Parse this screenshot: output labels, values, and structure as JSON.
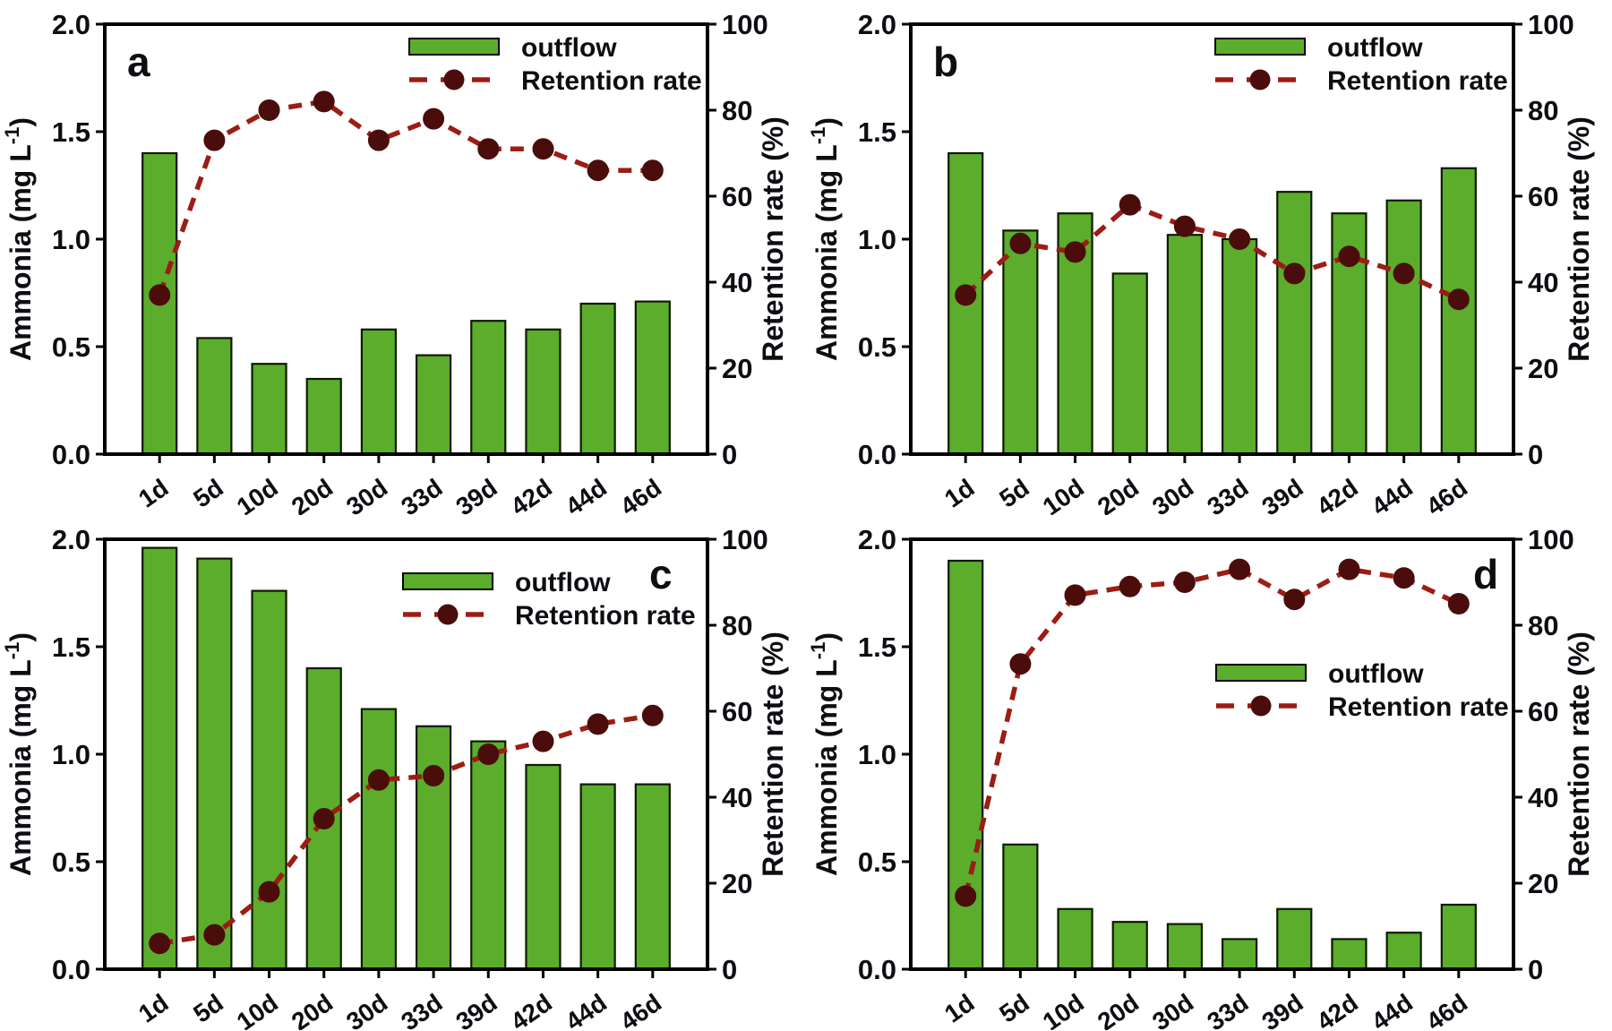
{
  "figure": {
    "background": "#ffffff",
    "panel_letters": [
      "a",
      "b",
      "c",
      "d"
    ],
    "legend": {
      "outflow_label": "outflow",
      "retention_label": "Retention rate"
    },
    "axes": {
      "left_label": "Ammonia (mg L⁻¹)",
      "left_label_main": "Ammonia (mg L",
      "left_label_sup": "-1",
      "left_label_close": ")",
      "left_ticks": [
        "0.0",
        "0.5",
        "1.0",
        "1.5",
        "2.0"
      ],
      "left_tick_values": [
        0,
        0.5,
        1.0,
        1.5,
        2.0
      ],
      "left_range": [
        0,
        2
      ],
      "right_label": "Retention rate (%)",
      "right_ticks": [
        "0",
        "20",
        "40",
        "60",
        "80",
        "100"
      ],
      "right_tick_values": [
        0,
        20,
        40,
        60,
        80,
        100
      ],
      "right_range": [
        0,
        100
      ],
      "x_tick_labels": [
        "1d",
        "5d",
        "10d",
        "20d",
        "30d",
        "33d",
        "39d",
        "42d",
        "44d",
        "46d"
      ]
    },
    "colors": {
      "bar_fill": "#5BAD2B",
      "bar_stroke": "#0d1a02",
      "line": "#9B1D14",
      "marker": "#4A0D0B",
      "text": "#0d0d12",
      "frame": "#000000"
    }
  },
  "chart_data": [
    {
      "panel": "a",
      "type": "bar",
      "categories": [
        "1d",
        "5d",
        "10d",
        "20d",
        "30d",
        "33d",
        "39d",
        "42d",
        "44d",
        "46d"
      ],
      "series": [
        {
          "name": "outflow",
          "type": "bar",
          "yaxis": "left",
          "unit": "mg L-1",
          "values": [
            1.4,
            0.54,
            0.42,
            0.35,
            0.58,
            0.46,
            0.62,
            0.58,
            0.7,
            0.71
          ]
        },
        {
          "name": "Retention rate",
          "type": "line",
          "yaxis": "right",
          "unit": "%",
          "values": [
            37,
            73,
            80,
            82,
            73,
            78,
            71,
            71,
            66,
            66
          ]
        }
      ],
      "ylabel_left": "Ammonia (mg L⁻¹)",
      "ylabel_right": "Retention rate (%)",
      "ylim_left": [
        0,
        2
      ],
      "ylim_right": [
        0,
        100
      ],
      "legend_position": "upper-right",
      "letter_position": "upper-left",
      "grid": false
    },
    {
      "panel": "b",
      "type": "bar",
      "categories": [
        "1d",
        "5d",
        "10d",
        "20d",
        "30d",
        "33d",
        "39d",
        "42d",
        "44d",
        "46d"
      ],
      "series": [
        {
          "name": "outflow",
          "type": "bar",
          "yaxis": "left",
          "unit": "mg L-1",
          "values": [
            1.4,
            1.04,
            1.12,
            0.84,
            1.02,
            1.0,
            1.22,
            1.12,
            1.18,
            1.33
          ]
        },
        {
          "name": "Retention rate",
          "type": "line",
          "yaxis": "right",
          "unit": "%",
          "values": [
            37,
            49,
            47,
            58,
            53,
            50,
            42,
            46,
            42,
            36
          ]
        }
      ],
      "ylabel_left": "Ammonia (mg L⁻¹)",
      "ylabel_right": "Retention rate (%)",
      "ylim_left": [
        0,
        2
      ],
      "ylim_right": [
        0,
        100
      ],
      "legend_position": "upper-right",
      "letter_position": "upper-left",
      "grid": false
    },
    {
      "panel": "c",
      "type": "bar",
      "categories": [
        "1d",
        "5d",
        "10d",
        "20d",
        "30d",
        "33d",
        "39d",
        "42d",
        "44d",
        "46d"
      ],
      "series": [
        {
          "name": "outflow",
          "type": "bar",
          "yaxis": "left",
          "unit": "mg L-1",
          "values": [
            1.96,
            1.91,
            1.76,
            1.4,
            1.21,
            1.13,
            1.06,
            0.95,
            0.86,
            0.86
          ]
        },
        {
          "name": "Retention rate",
          "type": "line",
          "yaxis": "right",
          "unit": "%",
          "values": [
            6,
            8,
            18,
            35,
            44,
            45,
            50,
            53,
            57,
            59
          ]
        }
      ],
      "ylabel_left": "Ammonia (mg L⁻¹)",
      "ylabel_right": "Retention rate (%)",
      "ylim_left": [
        0,
        2
      ],
      "ylim_right": [
        0,
        100
      ],
      "legend_position": "upper-right",
      "letter_position": "upper-right-of-legend",
      "grid": false
    },
    {
      "panel": "d",
      "type": "bar",
      "categories": [
        "1d",
        "5d",
        "10d",
        "20d",
        "30d",
        "33d",
        "39d",
        "42d",
        "44d",
        "46d"
      ],
      "series": [
        {
          "name": "outflow",
          "type": "bar",
          "yaxis": "left",
          "unit": "mg L-1",
          "values": [
            1.9,
            0.58,
            0.28,
            0.22,
            0.21,
            0.14,
            0.28,
            0.14,
            0.17,
            0.3
          ]
        },
        {
          "name": "Retention rate",
          "type": "line",
          "yaxis": "right",
          "unit": "%",
          "values": [
            17,
            71,
            87,
            89,
            90,
            93,
            86,
            93,
            91,
            85
          ]
        }
      ],
      "ylabel_left": "Ammonia (mg L⁻¹)",
      "ylabel_right": "Retention rate (%)",
      "ylim_left": [
        0,
        2
      ],
      "ylim_right": [
        0,
        100
      ],
      "legend_position": "middle-right",
      "letter_position": "upper-right",
      "grid": false
    }
  ]
}
